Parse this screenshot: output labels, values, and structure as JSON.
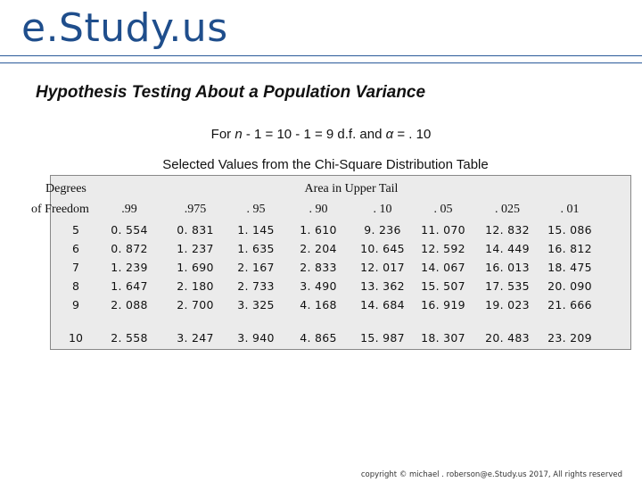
{
  "brand": "e.Study.us",
  "title": "Hypothesis Testing About a Population Variance",
  "subtitle": {
    "prefix": "For ",
    "n": "n",
    "rest": " - 1 = 10 - 1 = 9 d.f. and ",
    "alpha": "α",
    "suffix": " = . 10"
  },
  "caption": "Selected Values from the Chi-Square Distribution Table",
  "table": {
    "header_degrees": "Degrees",
    "header_freedom": "of Freedom",
    "header_area": "Area in Upper Tail",
    "columns": [
      ".99",
      ".975",
      ". 95",
      ". 90",
      ". 10",
      ". 05",
      ". 025",
      ". 01"
    ],
    "rows": [
      {
        "df": "5",
        "values": [
          "0. 554",
          "0. 831",
          "1. 145",
          "1. 610",
          "9. 236",
          "11. 070",
          "12. 832",
          "15. 086"
        ]
      },
      {
        "df": "6",
        "values": [
          "0. 872",
          "1. 237",
          "1. 635",
          "2. 204",
          "10. 645",
          "12. 592",
          "14. 449",
          "16. 812"
        ]
      },
      {
        "df": "7",
        "values": [
          "1. 239",
          "1. 690",
          "2. 167",
          "2. 833",
          "12. 017",
          "14. 067",
          "16. 013",
          "18. 475"
        ]
      },
      {
        "df": "8",
        "values": [
          "1. 647",
          "2. 180",
          "2. 733",
          "3. 490",
          "13. 362",
          "15. 507",
          "17. 535",
          "20. 090"
        ]
      },
      {
        "df": "9",
        "values": [
          "2. 088",
          "2. 700",
          "3. 325",
          "4. 168",
          "14. 684",
          "16. 919",
          "19. 023",
          "21. 666"
        ]
      },
      {
        "df": "10",
        "values": [
          "2. 558",
          "3. 247",
          "3. 940",
          "4. 865",
          "15. 987",
          "18. 307",
          "20. 483",
          "23. 209"
        ]
      }
    ]
  },
  "footer": "copyright © michael . roberson@e.Study.us 2017, All rights reserved",
  "colors": {
    "brand": "#1f4e8c",
    "table_bg": "#ebebeb"
  }
}
